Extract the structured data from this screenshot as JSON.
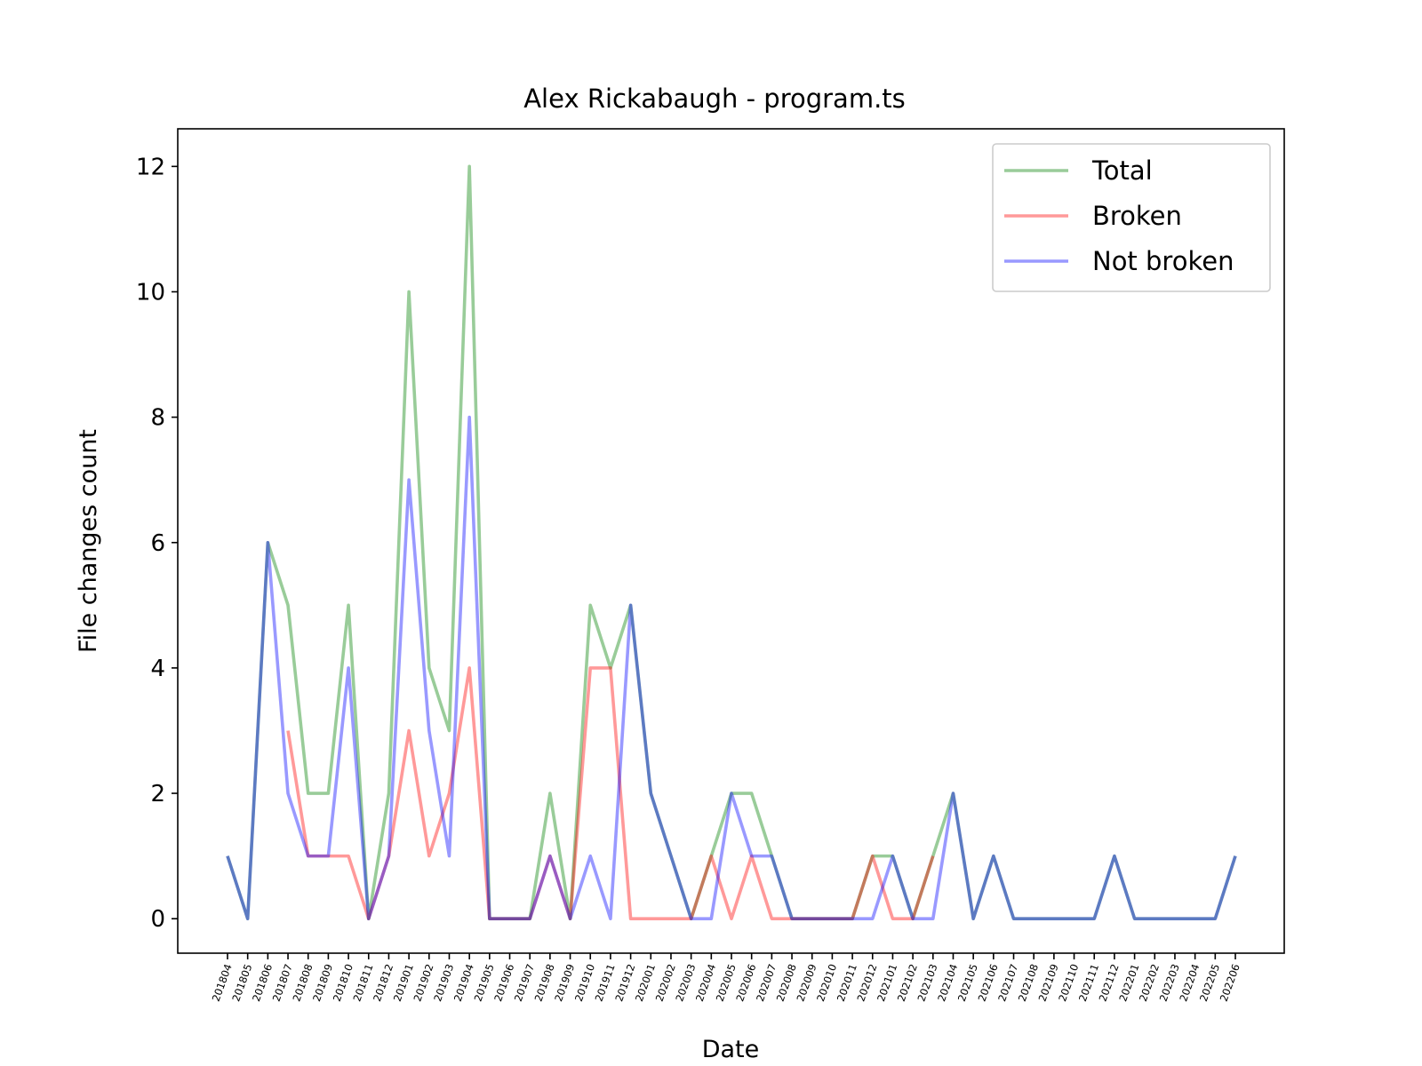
{
  "chart_data": {
    "type": "line",
    "title": "Alex Rickabaugh - program.ts",
    "xlabel": "Date",
    "ylabel": "File changes count",
    "ylim": [
      -0.55,
      12.6
    ],
    "yticks": [
      0,
      2,
      4,
      6,
      8,
      10,
      12
    ],
    "ytick_labels": [
      "0",
      "2",
      "4",
      "6",
      "8",
      "10",
      "12"
    ],
    "grid": false,
    "legend_position": "top-right",
    "categories": [
      "201804",
      "201805",
      "201806",
      "201807",
      "201808",
      "201809",
      "201810",
      "201811",
      "201812",
      "201901",
      "201902",
      "201903",
      "201904",
      "201905",
      "201906",
      "201907",
      "201908",
      "201909",
      "201910",
      "201911",
      "201912",
      "202001",
      "202002",
      "202003",
      "202004",
      "202005",
      "202006",
      "202007",
      "202008",
      "202009",
      "202010",
      "202011",
      "202012",
      "202101",
      "202102",
      "202103",
      "202104",
      "202105",
      "202106",
      "202107",
      "202108",
      "202109",
      "202110",
      "202111",
      "202112",
      "202201",
      "202202",
      "202203",
      "202204",
      "202205",
      "202206"
    ],
    "series": [
      {
        "name": "Total",
        "color": "#008000",
        "values": [
          1,
          0,
          6,
          5,
          2,
          2,
          5,
          0,
          2,
          10,
          4,
          3,
          12,
          0,
          0,
          0,
          2,
          0,
          5,
          4,
          5,
          2,
          1,
          0,
          1,
          2,
          2,
          1,
          0,
          0,
          0,
          0,
          1,
          1,
          0,
          1,
          2,
          0,
          1,
          0,
          0,
          0,
          0,
          0,
          1,
          0,
          0,
          0,
          0,
          0,
          1
        ]
      },
      {
        "name": "Broken",
        "color": "#ff0000",
        "values": [
          null,
          null,
          null,
          3,
          1,
          1,
          1,
          0,
          1,
          3,
          1,
          2,
          4,
          0,
          0,
          0,
          1,
          0,
          4,
          4,
          0,
          0,
          0,
          0,
          1,
          0,
          1,
          0,
          0,
          0,
          0,
          0,
          1,
          0,
          0,
          1,
          null,
          null,
          null,
          null,
          null,
          null,
          null,
          null,
          null,
          null,
          null,
          null,
          null,
          null,
          null
        ]
      },
      {
        "name": "Not broken",
        "color": "#0000ff",
        "values": [
          1,
          0,
          6,
          2,
          1,
          1,
          4,
          0,
          1,
          7,
          3,
          1,
          8,
          0,
          0,
          0,
          1,
          0,
          1,
          0,
          5,
          2,
          1,
          0,
          0,
          2,
          1,
          1,
          0,
          0,
          0,
          0,
          0,
          1,
          0,
          0,
          2,
          0,
          1,
          0,
          0,
          0,
          0,
          0,
          1,
          0,
          0,
          0,
          0,
          0,
          1
        ]
      }
    ]
  }
}
